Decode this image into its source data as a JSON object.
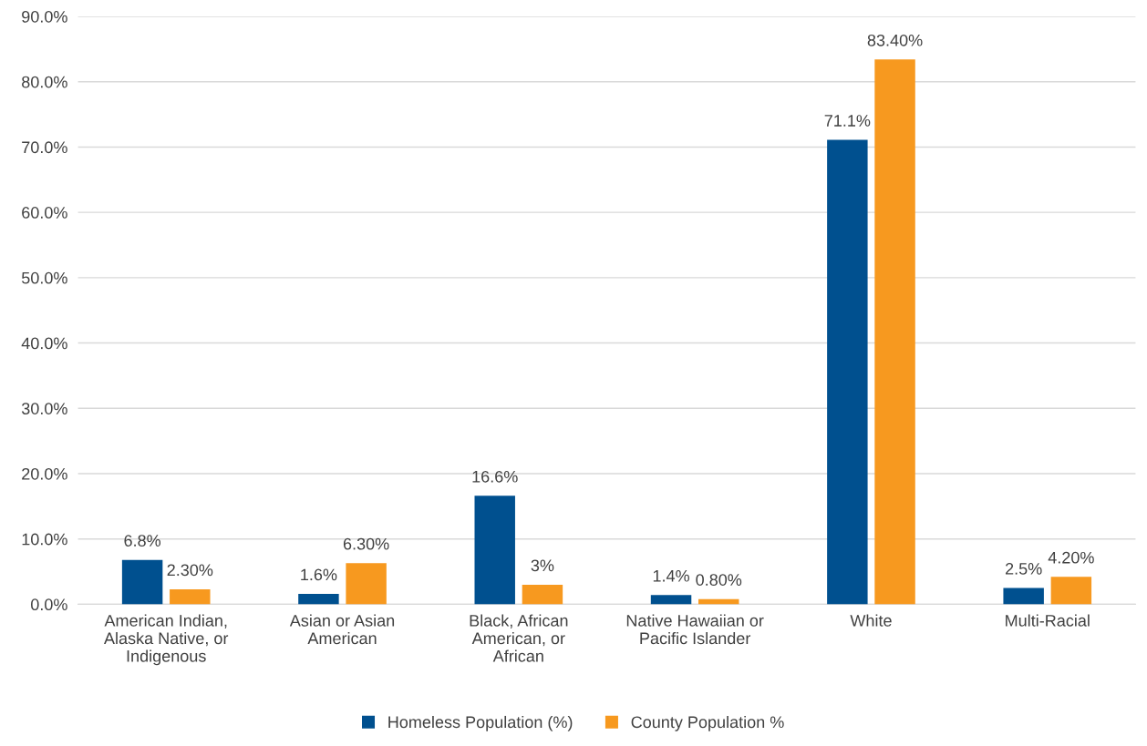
{
  "chart_data": {
    "type": "bar",
    "categories": [
      "American Indian,\nAlaska Native, or\nIndigenous",
      "Asian or Asian\nAmerican",
      "Black, African\nAmerican, or\nAfrican",
      "Native Hawaiian or\nPacific Islander",
      "White",
      "Multi-Racial"
    ],
    "series": [
      {
        "name": "Homeless Population (%)",
        "color": "#00508f",
        "values": [
          6.8,
          1.6,
          16.6,
          1.4,
          71.1,
          2.5
        ],
        "value_labels": [
          "6.8%",
          "1.6%",
          "16.6%",
          "1.4%",
          "71.1%",
          "2.5%"
        ]
      },
      {
        "name": "County Population %",
        "color": "#f7991f",
        "values": [
          2.3,
          6.3,
          3,
          0.8,
          83.4,
          4.2
        ],
        "value_labels": [
          "2.30%",
          "6.30%",
          "3%",
          "0.80%",
          "83.40%",
          "4.20%"
        ]
      }
    ],
    "ylim": [
      0,
      90
    ],
    "yticks": [
      {
        "value": 0,
        "label": "0.0%"
      },
      {
        "value": 10,
        "label": "10.0%"
      },
      {
        "value": 20,
        "label": "20.0%"
      },
      {
        "value": 30,
        "label": "30.0%"
      },
      {
        "value": 40,
        "label": "40.0%"
      },
      {
        "value": 50,
        "label": "50.0%"
      },
      {
        "value": 60,
        "label": "60.0%"
      },
      {
        "value": 70,
        "label": "70.0%"
      },
      {
        "value": 80,
        "label": "80.0%"
      },
      {
        "value": 90,
        "label": "90.0%"
      }
    ],
    "grid": "y",
    "legend": "bottom"
  }
}
